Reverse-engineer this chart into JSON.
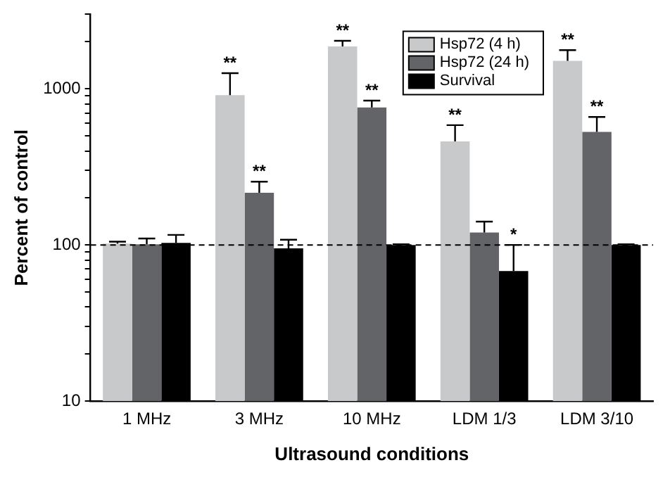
{
  "chart_data": {
    "type": "bar",
    "xlabel": "Ultrasound conditions",
    "ylabel": "Percent of control",
    "categories": [
      "1 MHz",
      "3 MHz",
      "10 MHz",
      "LDM 1/3",
      "LDM 3/10"
    ],
    "series": [
      {
        "name": "Hsp72 (4 h)",
        "color": "#c8c9cb",
        "values": [
          102,
          910,
          1870,
          460,
          1510
        ],
        "errors": [
          [
            102,
            105
          ],
          [
            910,
            1260
          ],
          [
            1870,
            2030
          ],
          [
            460,
            585
          ],
          [
            1510,
            1770
          ]
        ],
        "value_labels": [
          null,
          "**",
          "**",
          "**",
          "**"
        ]
      },
      {
        "name": "Hsp72 (24 h)",
        "color": "#636468",
        "values": [
          101,
          216,
          760,
          120,
          530
        ],
        "errors": [
          [
            101,
            110
          ],
          [
            216,
            254
          ],
          [
            760,
            840
          ],
          [
            120,
            141
          ],
          [
            530,
            660
          ]
        ],
        "value_labels": [
          null,
          "**",
          "**",
          null,
          "**"
        ]
      },
      {
        "name": "Survival",
        "color": "#000000",
        "values": [
          103,
          95,
          100,
          68,
          100
        ],
        "errors": [
          [
            103,
            116
          ],
          [
            95,
            108
          ],
          [
            100,
            101
          ],
          [
            68,
            100
          ],
          [
            100,
            101
          ]
        ],
        "value_labels": [
          null,
          null,
          null,
          "*",
          null
        ]
      }
    ],
    "log": true,
    "ylim": [
      10,
      3000
    ],
    "yticks": [
      10,
      {
        "value": 20,
        "label": null
      },
      {
        "value": 30,
        "label": null
      },
      {
        "value": 40,
        "label": null
      },
      {
        "value": 50,
        "label": null
      },
      {
        "value": 60,
        "label": null
      },
      {
        "value": 70,
        "label": null
      },
      {
        "value": 80,
        "label": null
      },
      {
        "value": 90,
        "label": null
      },
      100,
      {
        "value": 200,
        "label": null
      },
      {
        "value": 300,
        "label": null
      },
      {
        "value": 400,
        "label": null
      },
      {
        "value": 500,
        "label": null
      },
      {
        "value": 600,
        "label": null
      },
      {
        "value": 700,
        "label": null
      },
      {
        "value": 800,
        "label": null
      },
      {
        "value": 900,
        "label": null
      },
      1000,
      {
        "value": 2000,
        "label": null
      },
      {
        "value": 3000,
        "label": null
      }
    ],
    "ref_lines": [
      {
        "axis": "y",
        "value": 100,
        "line_style": "dashed",
        "color": "#000000"
      }
    ],
    "grid": false,
    "legend": "top right"
  }
}
